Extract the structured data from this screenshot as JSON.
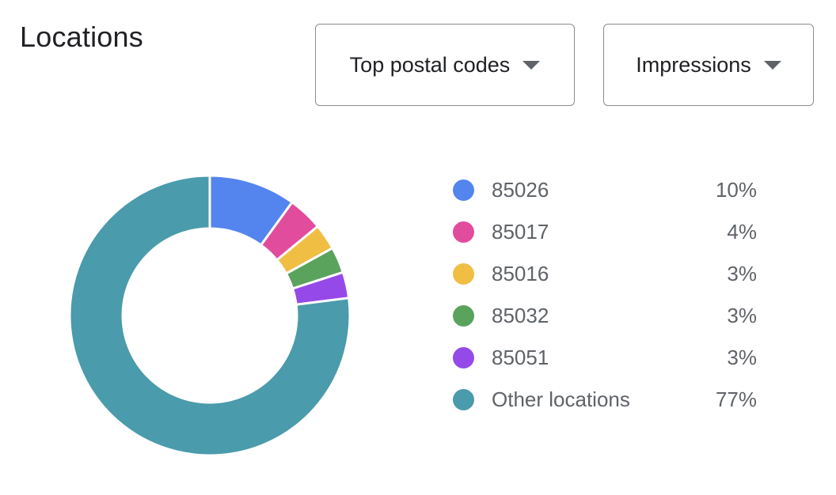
{
  "header": {
    "title": "Locations"
  },
  "controls": {
    "metric_dropdown": {
      "selected": "Top postal codes",
      "icon": "arrow-drop-down-icon"
    },
    "value_dropdown": {
      "selected": "Impressions",
      "icon": "arrow-drop-down-icon"
    }
  },
  "chart_data": {
    "type": "pie",
    "variant": "donut",
    "legend_position": "right",
    "categories": [
      "85026",
      "85017",
      "85016",
      "85032",
      "85051",
      "Other locations"
    ],
    "values": [
      10,
      4,
      3,
      3,
      3,
      77
    ],
    "unit": "%",
    "labels": [
      "10%",
      "4%",
      "3%",
      "3%",
      "3%",
      "77%"
    ],
    "colors": [
      "#5484ed",
      "#e14c9c",
      "#efbe43",
      "#5aa35d",
      "#9549e8",
      "#4a9bab"
    ]
  }
}
